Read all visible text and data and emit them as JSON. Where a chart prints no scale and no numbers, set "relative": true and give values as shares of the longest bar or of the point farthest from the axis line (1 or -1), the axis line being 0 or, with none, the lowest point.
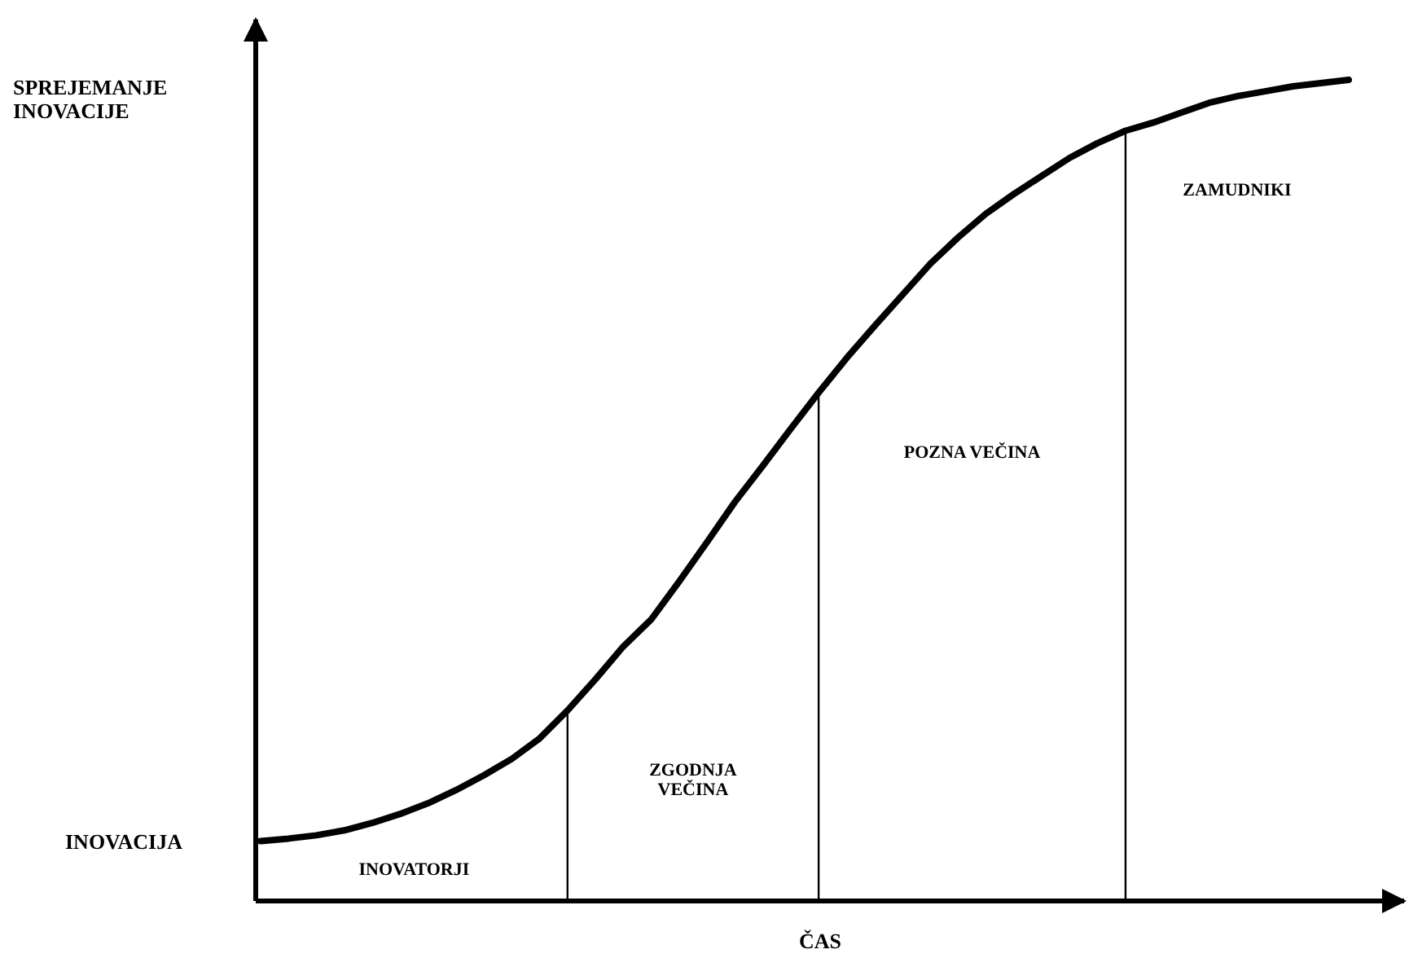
{
  "chart_data": {
    "type": "line",
    "ylabel": "SPREJEMANJE\nINOVACIJE",
    "xlabel": "ČAS",
    "relative": true,
    "categories": [
      null,
      null,
      null,
      null,
      null,
      null,
      null,
      null,
      null,
      null,
      null,
      null,
      null,
      null,
      null,
      null,
      null,
      null,
      null,
      null,
      null,
      null,
      null,
      null,
      null,
      null,
      null,
      null,
      null,
      null,
      null,
      null,
      null,
      null,
      null,
      null,
      null,
      null,
      null,
      null
    ],
    "series": [
      {
        "color": "#000000",
        "values": [
          0.073,
          0.076,
          0.08,
          0.086,
          0.095,
          0.106,
          0.119,
          0.135,
          0.153,
          0.173,
          0.198,
          0.232,
          0.27,
          0.31,
          0.343,
          0.389,
          0.437,
          0.486,
          0.53,
          0.575,
          0.619,
          0.661,
          0.7,
          0.738,
          0.776,
          0.808,
          0.837,
          0.861,
          0.883,
          0.905,
          0.923,
          0.938,
          0.948,
          0.96,
          0.972,
          0.98,
          0.986,
          0.992,
          0.996,
          1
        ]
      }
    ],
    "annotations": [
      "INOVACIJA",
      "INOVATORJI",
      "ZGODNJA\nVEČINA",
      "POZNA VEČINA",
      "ZAMUDNIKI"
    ]
  }
}
